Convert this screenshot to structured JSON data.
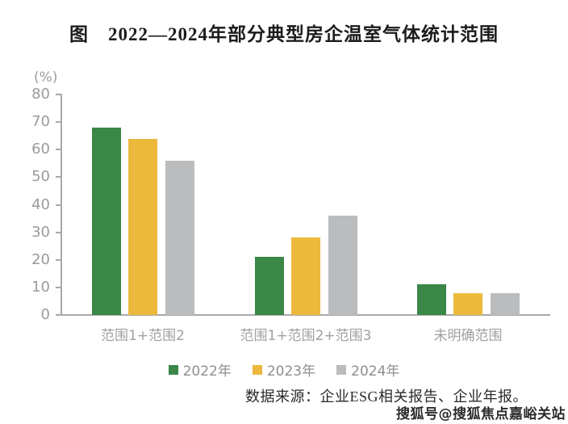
{
  "chart_data": {
    "type": "bar",
    "title": "图　2022—2024年部分典型房企温室气体统计范围",
    "ylabel": "(%)",
    "xlabel": "",
    "ylim": [
      0,
      80
    ],
    "yticks": [
      0,
      10,
      20,
      30,
      40,
      50,
      60,
      70,
      80
    ],
    "grid": false,
    "legend_position": "bottom",
    "categories": [
      "范围1+范围2",
      "范围1+范围2+范围3",
      "未明确范围"
    ],
    "series": [
      {
        "name": "2022年",
        "color": "#3A8747",
        "values": [
          68,
          21,
          11
        ]
      },
      {
        "name": "2023年",
        "color": "#ECB93D",
        "values": [
          64,
          28,
          8
        ]
      },
      {
        "name": "2024年",
        "color": "#BBBCBE",
        "values": [
          56,
          36,
          8
        ]
      }
    ]
  },
  "footer": {
    "source_note": "数据来源：企业ESG相关报告、企业年报。",
    "watermark": "搜狐号@搜狐焦点嘉峪关站"
  },
  "colors": {
    "axis": "#A9A9A9",
    "tick_label": "#9B9B9B",
    "category_label": "#A0A0A0",
    "legend_label": "#8F8F8F",
    "title_text": "#1C1C1C",
    "background": "#FFFFFF"
  }
}
